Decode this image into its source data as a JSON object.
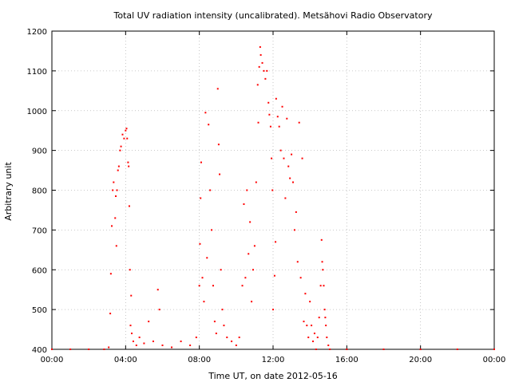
{
  "chart_data": {
    "type": "scatter",
    "title": "Total UV radiation intensity (uncalibrated). Metsähovi Radio Observatory",
    "xlabel": "Time UT, on date 2012-05-16",
    "ylabel": "Arbitrary unit",
    "xlim": [
      "00:00",
      "24:00"
    ],
    "ylim": [
      400,
      1200
    ],
    "x_ticks": [
      "00:00",
      "04:00",
      "08:00",
      "12:00",
      "16:00",
      "20:00",
      "00:00"
    ],
    "y_ticks": [
      400,
      500,
      600,
      700,
      800,
      900,
      1000,
      1100,
      1200
    ],
    "grid": true,
    "legend": "none",
    "series": [
      {
        "color": "#ff0000",
        "points": [
          [
            "00:00",
            400
          ],
          [
            "01:00",
            400
          ],
          [
            "02:00",
            400
          ],
          [
            "02:50",
            400
          ],
          [
            "03:05",
            405
          ],
          [
            "03:10",
            490
          ],
          [
            "03:12",
            590
          ],
          [
            "03:15",
            710
          ],
          [
            "03:18",
            800
          ],
          [
            "03:21",
            820
          ],
          [
            "03:26",
            730
          ],
          [
            "03:28",
            785
          ],
          [
            "03:30",
            660
          ],
          [
            "03:32",
            800
          ],
          [
            "03:35",
            850
          ],
          [
            "03:38",
            860
          ],
          [
            "03:42",
            900
          ],
          [
            "03:45",
            910
          ],
          [
            "03:50",
            940
          ],
          [
            "03:55",
            930
          ],
          [
            "04:00",
            950
          ],
          [
            "04:03",
            955
          ],
          [
            "04:05",
            930
          ],
          [
            "04:08",
            870
          ],
          [
            "04:10",
            860
          ],
          [
            "04:12",
            760
          ],
          [
            "04:14",
            600
          ],
          [
            "04:16",
            460
          ],
          [
            "04:18",
            535
          ],
          [
            "04:20",
            440
          ],
          [
            "04:25",
            420
          ],
          [
            "04:35",
            410
          ],
          [
            "04:45",
            430
          ],
          [
            "05:00",
            415
          ],
          [
            "05:15",
            470
          ],
          [
            "05:30",
            420
          ],
          [
            "05:45",
            550
          ],
          [
            "05:50",
            500
          ],
          [
            "06:00",
            410
          ],
          [
            "06:30",
            405
          ],
          [
            "07:00",
            420
          ],
          [
            "07:30",
            410
          ],
          [
            "07:50",
            430
          ],
          [
            "08:00",
            560
          ],
          [
            "08:02",
            665
          ],
          [
            "08:04",
            780
          ],
          [
            "08:06",
            870
          ],
          [
            "08:10",
            580
          ],
          [
            "08:15",
            520
          ],
          [
            "08:20",
            995
          ],
          [
            "08:25",
            630
          ],
          [
            "08:30",
            965
          ],
          [
            "08:35",
            800
          ],
          [
            "08:40",
            700
          ],
          [
            "08:45",
            560
          ],
          [
            "08:50",
            470
          ],
          [
            "08:55",
            440
          ],
          [
            "09:00",
            1055
          ],
          [
            "09:03",
            915
          ],
          [
            "09:06",
            840
          ],
          [
            "09:10",
            600
          ],
          [
            "09:15",
            500
          ],
          [
            "09:20",
            460
          ],
          [
            "09:30",
            430
          ],
          [
            "09:45",
            420
          ],
          [
            "10:00",
            410
          ],
          [
            "10:10",
            430
          ],
          [
            "10:20",
            560
          ],
          [
            "10:25",
            765
          ],
          [
            "10:30",
            580
          ],
          [
            "10:35",
            800
          ],
          [
            "10:40",
            640
          ],
          [
            "10:45",
            720
          ],
          [
            "10:50",
            520
          ],
          [
            "10:55",
            600
          ],
          [
            "11:00",
            660
          ],
          [
            "11:05",
            820
          ],
          [
            "11:10",
            1065
          ],
          [
            "11:12",
            970
          ],
          [
            "11:15",
            1110
          ],
          [
            "11:18",
            1160
          ],
          [
            "11:20",
            1140
          ],
          [
            "11:25",
            1120
          ],
          [
            "11:30",
            1100
          ],
          [
            "11:35",
            1080
          ],
          [
            "11:40",
            1100
          ],
          [
            "11:45",
            1020
          ],
          [
            "11:48",
            990
          ],
          [
            "11:52",
            960
          ],
          [
            "11:55",
            880
          ],
          [
            "11:58",
            800
          ],
          [
            "12:00",
            500
          ],
          [
            "12:05",
            585
          ],
          [
            "12:08",
            670
          ],
          [
            "12:10",
            1030
          ],
          [
            "12:15",
            985
          ],
          [
            "12:20",
            960
          ],
          [
            "12:25",
            900
          ],
          [
            "12:30",
            1010
          ],
          [
            "12:35",
            880
          ],
          [
            "12:40",
            780
          ],
          [
            "12:45",
            980
          ],
          [
            "12:50",
            860
          ],
          [
            "12:55",
            830
          ],
          [
            "13:00",
            890
          ],
          [
            "13:05",
            820
          ],
          [
            "13:10",
            700
          ],
          [
            "13:15",
            745
          ],
          [
            "13:20",
            620
          ],
          [
            "13:25",
            970
          ],
          [
            "13:30",
            580
          ],
          [
            "13:35",
            880
          ],
          [
            "13:40",
            470
          ],
          [
            "13:45",
            540
          ],
          [
            "13:50",
            460
          ],
          [
            "13:55",
            430
          ],
          [
            "14:00",
            520
          ],
          [
            "14:05",
            460
          ],
          [
            "14:10",
            420
          ],
          [
            "14:15",
            440
          ],
          [
            "14:20",
            400
          ],
          [
            "14:25",
            430
          ],
          [
            "14:30",
            480
          ],
          [
            "14:35",
            560
          ],
          [
            "14:38",
            675
          ],
          [
            "14:40",
            620
          ],
          [
            "14:42",
            600
          ],
          [
            "14:45",
            560
          ],
          [
            "14:48",
            500
          ],
          [
            "14:50",
            480
          ],
          [
            "14:52",
            460
          ],
          [
            "14:55",
            430
          ],
          [
            "15:00",
            410
          ],
          [
            "15:05",
            400
          ],
          [
            "16:00",
            400
          ],
          [
            "18:00",
            400
          ],
          [
            "20:00",
            400
          ],
          [
            "22:00",
            400
          ],
          [
            "24:00",
            400
          ]
        ]
      }
    ]
  }
}
